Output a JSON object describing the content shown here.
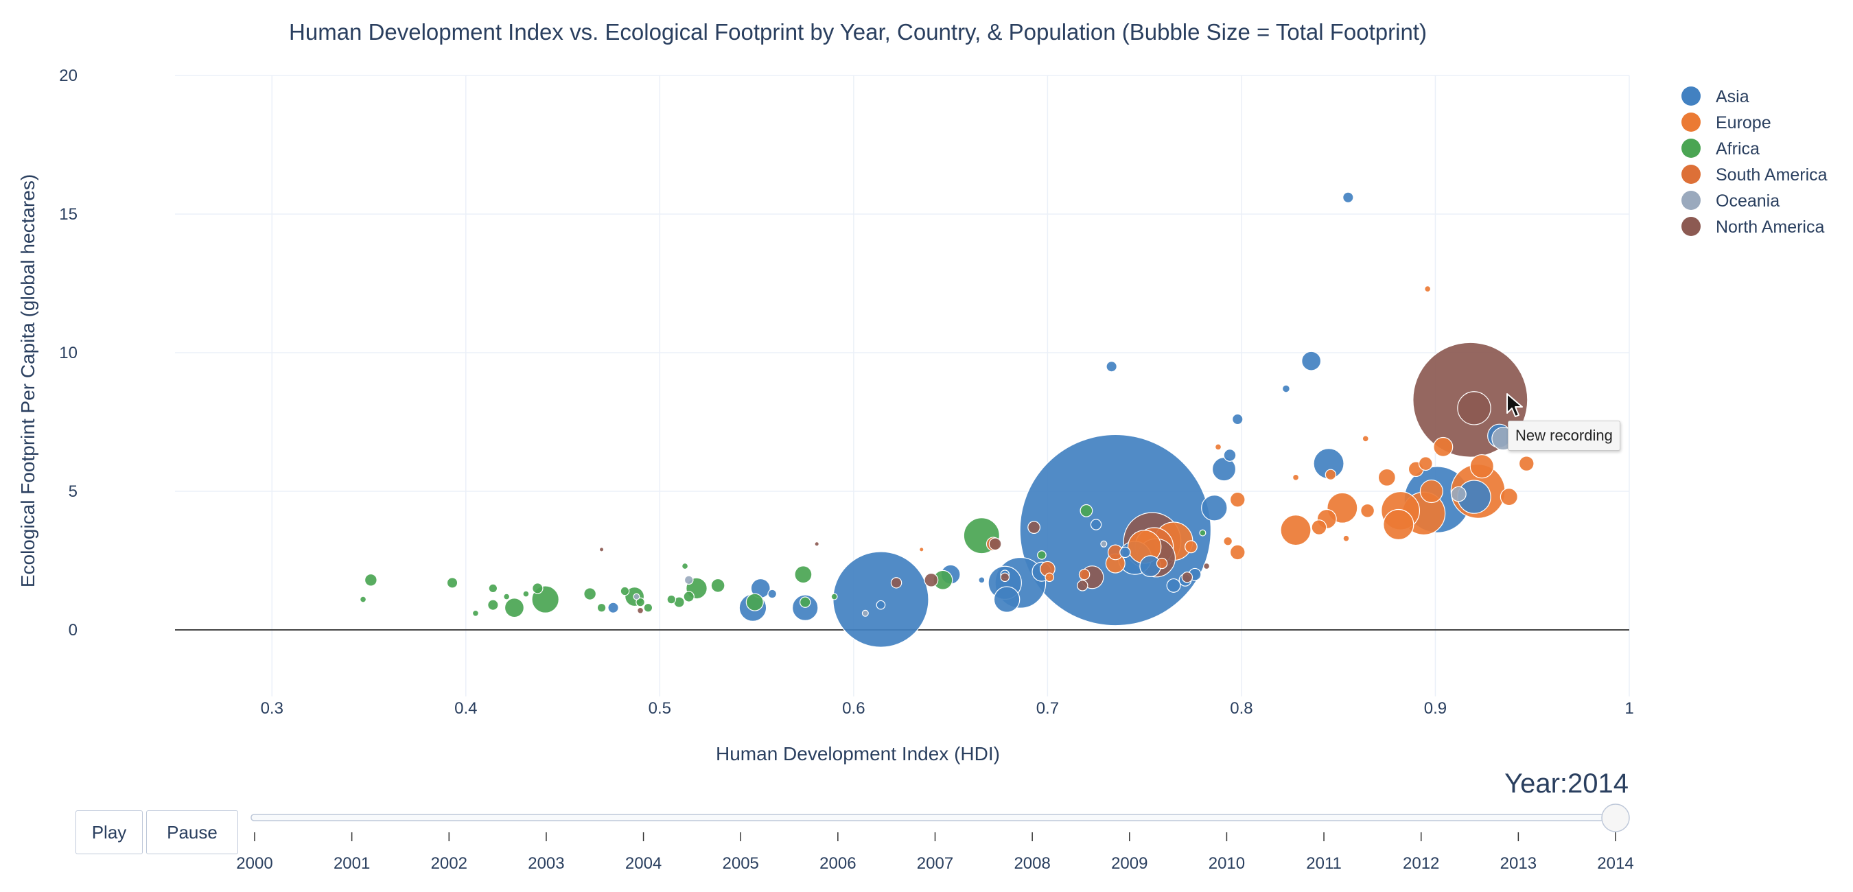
{
  "chart_data": {
    "type": "scatter",
    "title": "Human Development Index vs. Ecological Footprint by Year, Country, & Population (Bubble Size = Total Footprint)",
    "xlabel": "Human Development Index (HDI)",
    "ylabel": "Ecological Footprint Per Capita (global hectares)",
    "xlim": [
      0.25,
      1.0
    ],
    "ylim": [
      -2.4,
      20
    ],
    "xticks": [
      0.3,
      0.4,
      0.5,
      0.6,
      0.7,
      0.8,
      0.9,
      1
    ],
    "xtick_labels": [
      "0.3",
      "0.4",
      "0.5",
      "0.6",
      "0.7",
      "0.8",
      "0.9",
      "1"
    ],
    "yticks": [
      0,
      5,
      10,
      15,
      20
    ],
    "ytick_labels": [
      "0",
      "5",
      "10",
      "15",
      "20"
    ],
    "grid": true,
    "legend_position": "right",
    "size_variable": "total footprint (relative)",
    "series": [
      {
        "name": "Asia",
        "color": "#4281c1",
        "points": [
          {
            "x": 0.855,
            "y": 15.6,
            "s": 3
          },
          {
            "x": 0.733,
            "y": 9.5,
            "s": 3
          },
          {
            "x": 0.836,
            "y": 9.7,
            "s": 10
          },
          {
            "x": 0.823,
            "y": 8.7,
            "s": 1.5
          },
          {
            "x": 0.798,
            "y": 7.6,
            "s": 3
          },
          {
            "x": 0.845,
            "y": 6.0,
            "s": 25
          },
          {
            "x": 0.794,
            "y": 6.3,
            "s": 4
          },
          {
            "x": 0.791,
            "y": 5.8,
            "s": 15
          },
          {
            "x": 0.786,
            "y": 4.4,
            "s": 18
          },
          {
            "x": 0.901,
            "y": 4.7,
            "s": 120
          },
          {
            "x": 0.92,
            "y": 4.8,
            "s": 30
          },
          {
            "x": 0.933,
            "y": 7.0,
            "s": 15
          },
          {
            "x": 0.735,
            "y": 3.6,
            "s": 1000
          },
          {
            "x": 0.614,
            "y": 1.1,
            "s": 250
          },
          {
            "x": 0.686,
            "y": 1.7,
            "s": 70
          },
          {
            "x": 0.678,
            "y": 1.7,
            "s": 30
          },
          {
            "x": 0.679,
            "y": 1.1,
            "s": 18
          },
          {
            "x": 0.697,
            "y": 2.1,
            "s": 10
          },
          {
            "x": 0.65,
            "y": 2.0,
            "s": 10
          },
          {
            "x": 0.552,
            "y": 1.5,
            "s": 10
          },
          {
            "x": 0.548,
            "y": 0.8,
            "s": 20
          },
          {
            "x": 0.575,
            "y": 0.8,
            "s": 18
          },
          {
            "x": 0.678,
            "y": 2.0,
            "s": 2
          },
          {
            "x": 0.666,
            "y": 1.8,
            "s": 1
          },
          {
            "x": 0.745,
            "y": 2.6,
            "s": 30
          },
          {
            "x": 0.753,
            "y": 2.3,
            "s": 12
          },
          {
            "x": 0.776,
            "y": 2.0,
            "s": 4
          },
          {
            "x": 0.771,
            "y": 1.8,
            "s": 4
          },
          {
            "x": 0.765,
            "y": 1.6,
            "s": 5
          },
          {
            "x": 0.476,
            "y": 0.8,
            "s": 3
          },
          {
            "x": 0.558,
            "y": 1.3,
            "s": 2
          },
          {
            "x": 0.614,
            "y": 0.9,
            "s": 2
          },
          {
            "x": 0.725,
            "y": 3.8,
            "s": 3
          },
          {
            "x": 0.74,
            "y": 2.8,
            "s": 3
          }
        ]
      },
      {
        "name": "Europe",
        "color": "#eb7a34",
        "points": [
          {
            "x": 0.896,
            "y": 12.3,
            "s": 1
          },
          {
            "x": 0.864,
            "y": 6.9,
            "s": 1
          },
          {
            "x": 0.788,
            "y": 6.6,
            "s": 1
          },
          {
            "x": 0.904,
            "y": 6.6,
            "s": 10
          },
          {
            "x": 0.895,
            "y": 6.0,
            "s": 5
          },
          {
            "x": 0.89,
            "y": 5.8,
            "s": 6
          },
          {
            "x": 0.875,
            "y": 5.5,
            "s": 8
          },
          {
            "x": 0.846,
            "y": 5.6,
            "s": 3
          },
          {
            "x": 0.828,
            "y": 5.5,
            "s": 1
          },
          {
            "x": 0.898,
            "y": 5.0,
            "s": 14
          },
          {
            "x": 0.924,
            "y": 5.9,
            "s": 15
          },
          {
            "x": 0.947,
            "y": 6.0,
            "s": 6
          },
          {
            "x": 0.922,
            "y": 5.0,
            "s": 80
          },
          {
            "x": 0.938,
            "y": 4.8,
            "s": 8
          },
          {
            "x": 0.852,
            "y": 4.4,
            "s": 25
          },
          {
            "x": 0.882,
            "y": 4.3,
            "s": 40
          },
          {
            "x": 0.894,
            "y": 4.2,
            "s": 50
          },
          {
            "x": 0.865,
            "y": 4.3,
            "s": 5
          },
          {
            "x": 0.844,
            "y": 4.0,
            "s": 10
          },
          {
            "x": 0.84,
            "y": 3.7,
            "s": 6
          },
          {
            "x": 0.828,
            "y": 3.6,
            "s": 25
          },
          {
            "x": 0.881,
            "y": 3.8,
            "s": 25
          },
          {
            "x": 0.798,
            "y": 4.7,
            "s": 6
          },
          {
            "x": 0.798,
            "y": 2.8,
            "s": 6
          },
          {
            "x": 0.793,
            "y": 3.2,
            "s": 2
          },
          {
            "x": 0.854,
            "y": 3.3,
            "s": 1
          },
          {
            "x": 0.765,
            "y": 3.2,
            "s": 40
          },
          {
            "x": 0.774,
            "y": 3.0,
            "s": 4
          },
          {
            "x": 0.75,
            "y": 3.0,
            "s": 30
          },
          {
            "x": 0.735,
            "y": 2.4,
            "s": 10
          },
          {
            "x": 0.701,
            "y": 1.9,
            "s": 2
          },
          {
            "x": 0.635,
            "y": 2.9,
            "s": 0.5
          }
        ]
      },
      {
        "name": "Africa",
        "color": "#4aa553",
        "points": [
          {
            "x": 0.351,
            "y": 1.8,
            "s": 4
          },
          {
            "x": 0.347,
            "y": 1.1,
            "s": 1
          },
          {
            "x": 0.393,
            "y": 1.7,
            "s": 3
          },
          {
            "x": 0.405,
            "y": 0.6,
            "s": 1
          },
          {
            "x": 0.414,
            "y": 1.5,
            "s": 2
          },
          {
            "x": 0.414,
            "y": 0.9,
            "s": 3
          },
          {
            "x": 0.425,
            "y": 0.8,
            "s": 10
          },
          {
            "x": 0.437,
            "y": 1.5,
            "s": 3
          },
          {
            "x": 0.441,
            "y": 1.1,
            "s": 20
          },
          {
            "x": 0.421,
            "y": 1.2,
            "s": 1
          },
          {
            "x": 0.431,
            "y": 1.3,
            "s": 1
          },
          {
            "x": 0.464,
            "y": 1.3,
            "s": 4
          },
          {
            "x": 0.47,
            "y": 0.8,
            "s": 2
          },
          {
            "x": 0.482,
            "y": 1.4,
            "s": 2
          },
          {
            "x": 0.487,
            "y": 1.2,
            "s": 10
          },
          {
            "x": 0.49,
            "y": 1.0,
            "s": 2
          },
          {
            "x": 0.494,
            "y": 0.8,
            "s": 2
          },
          {
            "x": 0.506,
            "y": 1.1,
            "s": 2
          },
          {
            "x": 0.51,
            "y": 1.0,
            "s": 3
          },
          {
            "x": 0.513,
            "y": 2.3,
            "s": 1
          },
          {
            "x": 0.519,
            "y": 1.5,
            "s": 12
          },
          {
            "x": 0.515,
            "y": 1.2,
            "s": 3
          },
          {
            "x": 0.53,
            "y": 1.6,
            "s": 5
          },
          {
            "x": 0.549,
            "y": 1.0,
            "s": 8
          },
          {
            "x": 0.574,
            "y": 2.0,
            "s": 8
          },
          {
            "x": 0.575,
            "y": 1.0,
            "s": 3
          },
          {
            "x": 0.59,
            "y": 1.2,
            "s": 1
          },
          {
            "x": 0.646,
            "y": 1.8,
            "s": 10
          },
          {
            "x": 0.666,
            "y": 3.4,
            "s": 35
          },
          {
            "x": 0.697,
            "y": 2.7,
            "s": 2
          },
          {
            "x": 0.72,
            "y": 4.3,
            "s": 4
          },
          {
            "x": 0.78,
            "y": 3.5,
            "s": 1
          }
        ]
      },
      {
        "name": "South America",
        "color": "#dd7037",
        "points": [
          {
            "x": 0.755,
            "y": 3.0,
            "s": 40
          },
          {
            "x": 0.7,
            "y": 2.2,
            "s": 6
          },
          {
            "x": 0.672,
            "y": 3.1,
            "s": 5
          },
          {
            "x": 0.735,
            "y": 2.8,
            "s": 6
          },
          {
            "x": 0.719,
            "y": 2.0,
            "s": 3
          },
          {
            "x": 0.759,
            "y": 2.4,
            "s": 3
          }
        ]
      },
      {
        "name": "Oceania",
        "color": "#9aa9bd",
        "points": [
          {
            "x": 0.935,
            "y": 6.9,
            "s": 14
          },
          {
            "x": 0.912,
            "y": 4.9,
            "s": 6
          },
          {
            "x": 0.488,
            "y": 1.2,
            "s": 1
          },
          {
            "x": 0.606,
            "y": 0.6,
            "s": 1
          },
          {
            "x": 0.515,
            "y": 1.8,
            "s": 2
          },
          {
            "x": 0.729,
            "y": 3.1,
            "s": 1
          }
        ]
      },
      {
        "name": "North America",
        "color": "#8c5a52",
        "points": [
          {
            "x": 0.918,
            "y": 8.3,
            "s": 360
          },
          {
            "x": 0.92,
            "y": 8.0,
            "s": 30
          },
          {
            "x": 0.754,
            "y": 3.2,
            "s": 90
          },
          {
            "x": 0.756,
            "y": 2.6,
            "s": 40
          },
          {
            "x": 0.723,
            "y": 1.9,
            "s": 14
          },
          {
            "x": 0.693,
            "y": 3.7,
            "s": 4
          },
          {
            "x": 0.673,
            "y": 3.1,
            "s": 4
          },
          {
            "x": 0.64,
            "y": 1.8,
            "s": 5
          },
          {
            "x": 0.622,
            "y": 1.7,
            "s": 3
          },
          {
            "x": 0.678,
            "y": 1.9,
            "s": 2
          },
          {
            "x": 0.772,
            "y": 1.9,
            "s": 3
          },
          {
            "x": 0.782,
            "y": 2.3,
            "s": 1
          },
          {
            "x": 0.718,
            "y": 1.6,
            "s": 3
          },
          {
            "x": 0.49,
            "y": 0.7,
            "s": 1
          },
          {
            "x": 0.47,
            "y": 2.9,
            "s": 0.5
          },
          {
            "x": 0.581,
            "y": 3.1,
            "s": 0.5
          }
        ]
      }
    ]
  },
  "slider": {
    "prefix": "Year:",
    "current": "2014",
    "ticks": [
      "2000",
      "2001",
      "2002",
      "2003",
      "2004",
      "2005",
      "2006",
      "2007",
      "2008",
      "2009",
      "2010",
      "2011",
      "2012",
      "2013",
      "2014"
    ],
    "active_index": 14
  },
  "controls": {
    "play_label": "Play",
    "pause_label": "Pause"
  },
  "tooltip": {
    "text": "New recording"
  }
}
